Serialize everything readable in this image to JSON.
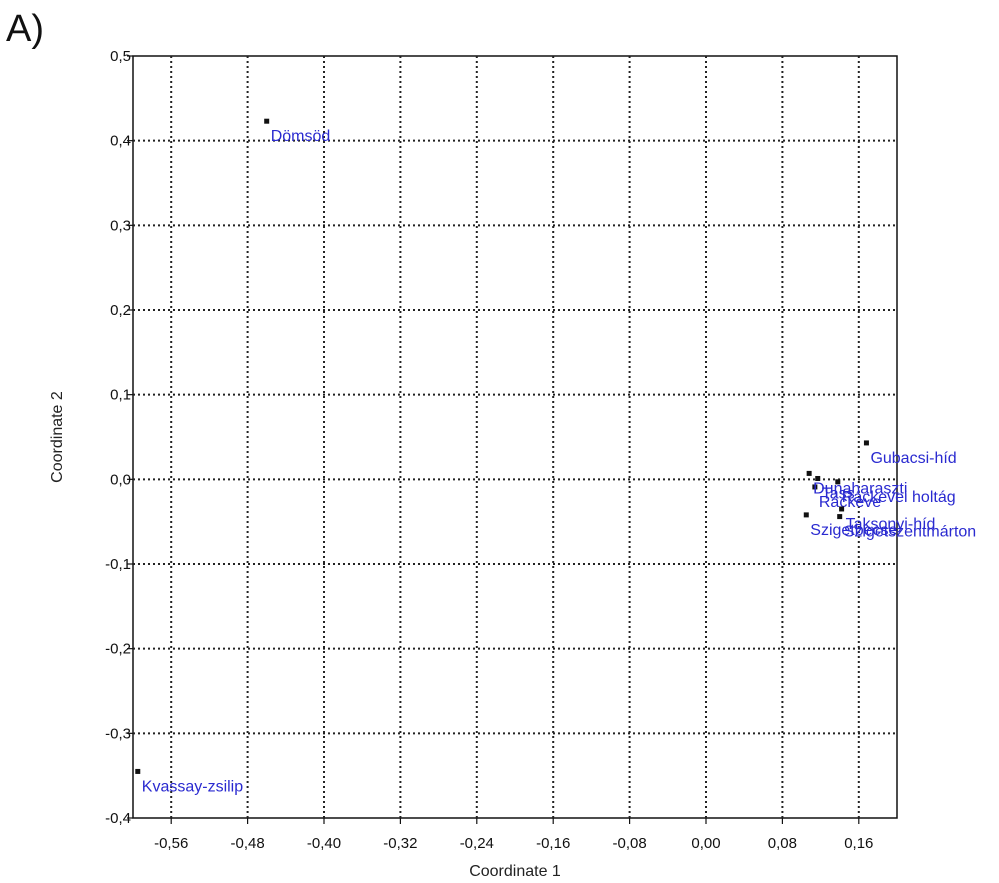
{
  "panel_label": "A)",
  "chart_data": {
    "type": "scatter",
    "title": "",
    "xlabel": "Coordinate 1",
    "ylabel": "Coordinate 2",
    "xlim": [
      -0.6,
      0.2
    ],
    "ylim": [
      -0.4,
      0.5
    ],
    "x_ticks": [
      -0.56,
      -0.48,
      -0.4,
      -0.32,
      -0.24,
      -0.16,
      -0.08,
      0.0,
      0.08,
      0.16
    ],
    "x_tick_labels": [
      "-0,56",
      "-0,48",
      "-0,40",
      "-0,32",
      "-0,24",
      "-0,16",
      "-0,08",
      "0,00",
      "0,08",
      "0,16"
    ],
    "y_ticks": [
      0.5,
      0.4,
      0.3,
      0.2,
      0.1,
      0.0,
      -0.1,
      -0.2,
      -0.3,
      -0.4
    ],
    "y_tick_labels": [
      "0,5",
      "0,4",
      "0,3",
      "0,2",
      "0,1",
      "0,0",
      "-0,1",
      "-0,2",
      "-0,3",
      "-0,4"
    ],
    "grid": true,
    "point_color": "#111111",
    "label_color": "#2a2ad0",
    "points": [
      {
        "label": "Dömsöd",
        "x": -0.46,
        "y": 0.423
      },
      {
        "label": "Kvassay-zsilip",
        "x": -0.595,
        "y": -0.345
      },
      {
        "label": "Gubacsi-híd",
        "x": 0.168,
        "y": 0.043
      },
      {
        "label": "Ráckevei holtág",
        "x": 0.138,
        "y": -0.003
      },
      {
        "label": "Ráckeve",
        "x": 0.114,
        "y": -0.009
      },
      {
        "label": "Dunaharaszti",
        "x": 0.108,
        "y": 0.007
      },
      {
        "label": "Tass",
        "x": 0.117,
        "y": 0.001
      },
      {
        "label": "Taksonyi-híd",
        "x": 0.142,
        "y": -0.035
      },
      {
        "label": "Szigetszentmárton",
        "x": 0.14,
        "y": -0.044
      },
      {
        "label": "Szigetbecse",
        "x": 0.105,
        "y": -0.042
      }
    ]
  }
}
